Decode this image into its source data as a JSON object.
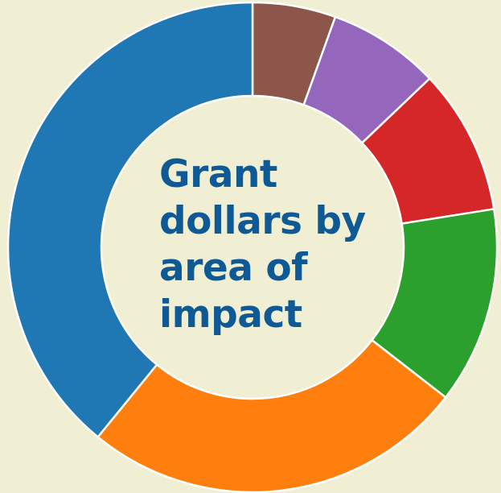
{
  "background": "#f0efd4",
  "title_color": "#0f5a94",
  "chart_data": {
    "type": "pie",
    "style": "donut",
    "title_lines": [
      "Grant",
      "dollars by",
      "area of",
      "impact"
    ],
    "slices": [
      {
        "value": 5.5,
        "color": "#8c564b"
      },
      {
        "value": 7.4,
        "color": "#9467bd"
      },
      {
        "value": 9.6,
        "color": "#d62728"
      },
      {
        "value": 13.0,
        "color": "#2ca02c"
      },
      {
        "value": 25.4,
        "color": "#ff7f0e"
      },
      {
        "value": 39.1,
        "color": "#1f77b4"
      }
    ],
    "legend": "none"
  }
}
